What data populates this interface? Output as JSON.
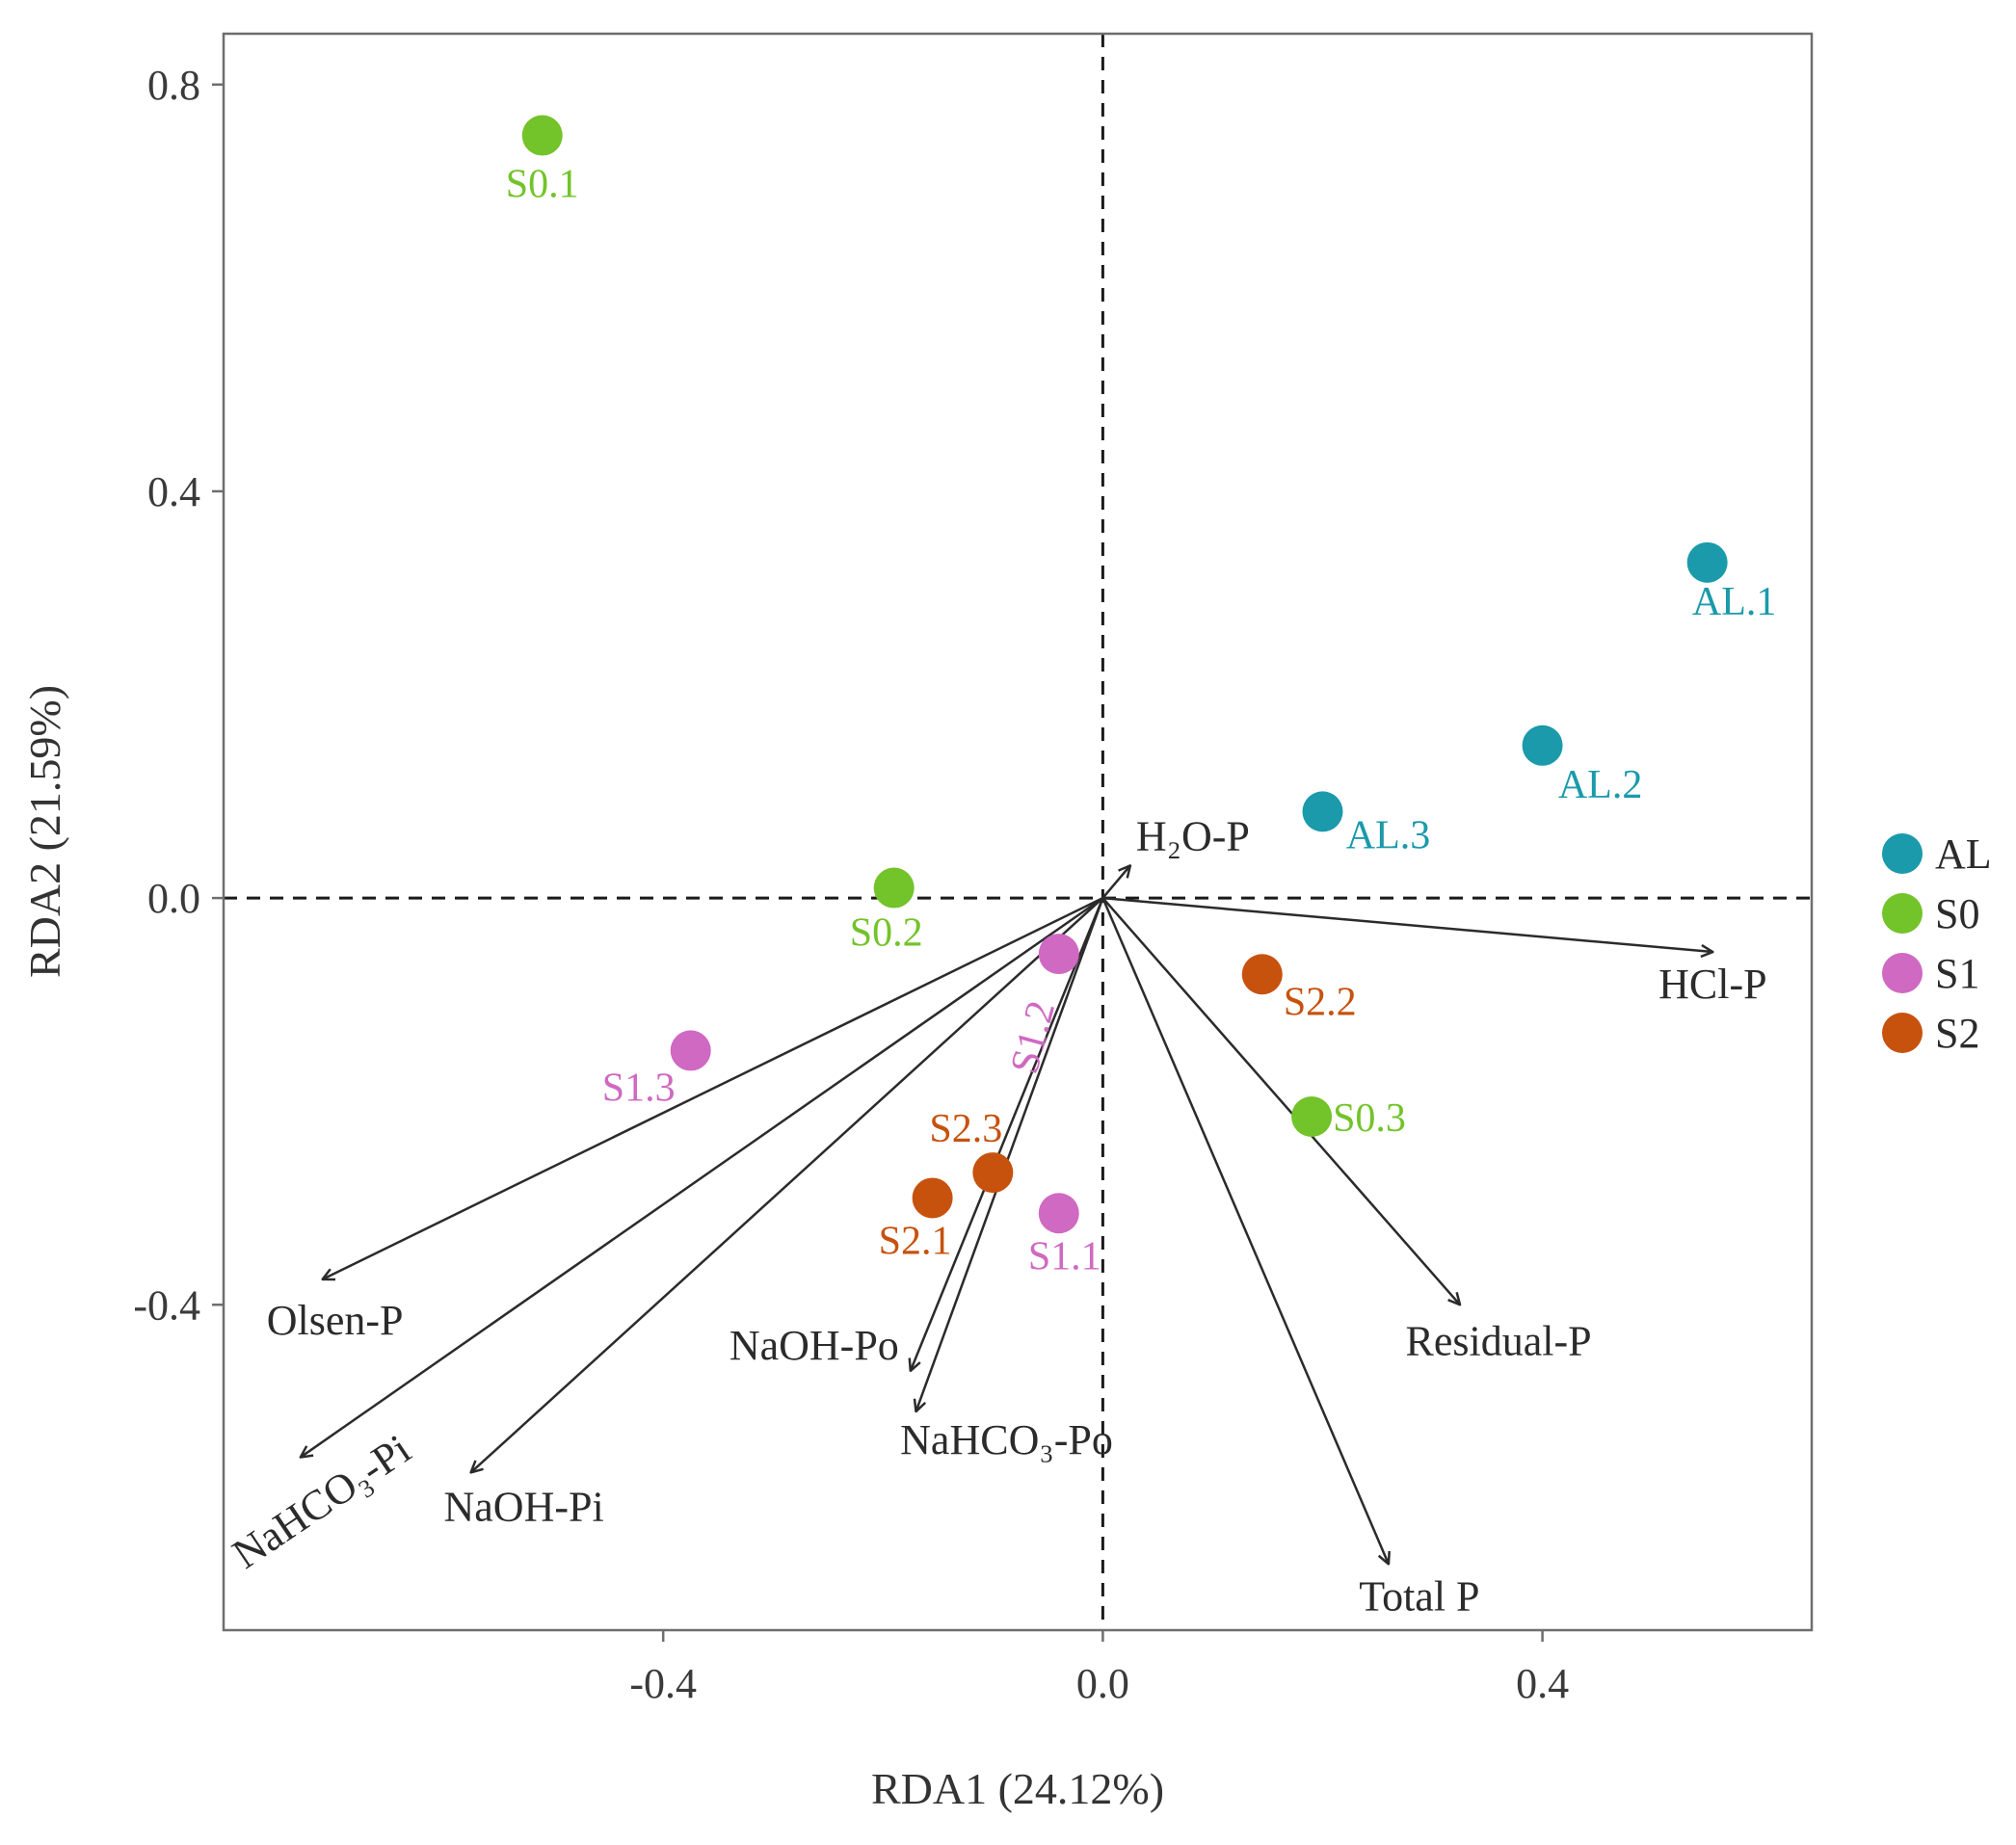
{
  "chart_data": {
    "type": "scatter",
    "subtype": "rda-biplot",
    "xlabel": "RDA1 (24.12%)",
    "ylabel": "RDA2 (21.59%)",
    "xlim": [
      -0.8,
      0.645
    ],
    "ylim": [
      -0.72,
      0.85
    ],
    "x_ticks": [
      {
        "value": -0.4,
        "label": "-0.4"
      },
      {
        "value": 0.0,
        "label": "0.0"
      },
      {
        "value": 0.4,
        "label": "0.4"
      }
    ],
    "y_ticks": [
      {
        "value": 0.8,
        "label": "0.8"
      },
      {
        "value": 0.4,
        "label": "0.4"
      },
      {
        "value": 0.0,
        "label": "0.0"
      },
      {
        "value": -0.4,
        "label": "-0.4"
      }
    ],
    "reference_lines": {
      "x": 0,
      "y": 0,
      "style": "dashed"
    },
    "legend": {
      "position": "right",
      "entries": [
        {
          "name": "AL",
          "color": "#1a9aaa"
        },
        {
          "name": "S0",
          "color": "#73c32a"
        },
        {
          "name": "S1",
          "color": "#cf69c2"
        },
        {
          "name": "S2",
          "color": "#c7520e"
        }
      ]
    },
    "samples": [
      {
        "label": "S0.1",
        "group": "S0",
        "x": -0.51,
        "y": 0.75
      },
      {
        "label": "S0.2",
        "group": "S0",
        "x": -0.19,
        "y": 0.01
      },
      {
        "label": "S0.3",
        "group": "S0",
        "x": 0.19,
        "y": -0.215
      },
      {
        "label": "AL.1",
        "group": "AL",
        "x": 0.55,
        "y": 0.33
      },
      {
        "label": "AL.2",
        "group": "AL",
        "x": 0.4,
        "y": 0.15
      },
      {
        "label": "AL.3",
        "group": "AL",
        "x": 0.2,
        "y": 0.085
      },
      {
        "label": "S1.1",
        "group": "S1",
        "x": -0.04,
        "y": -0.31
      },
      {
        "label": "S1.2",
        "group": "S1",
        "x": -0.04,
        "y": -0.055
      },
      {
        "label": "S1.3",
        "group": "S1",
        "x": -0.375,
        "y": -0.15
      },
      {
        "label": "S2.1",
        "group": "S2",
        "x": -0.155,
        "y": -0.295
      },
      {
        "label": "S2.2",
        "group": "S2",
        "x": 0.145,
        "y": -0.075
      },
      {
        "label": "S2.3",
        "group": "S2",
        "x": -0.1,
        "y": -0.27
      }
    ],
    "vectors": [
      {
        "label": "H₂O-P",
        "x": 0.025,
        "y": 0.032
      },
      {
        "label": "HCl-P",
        "x": 0.555,
        "y": -0.053
      },
      {
        "label": "Residual-P",
        "x": 0.325,
        "y": -0.4
      },
      {
        "label": "Total P",
        "x": 0.26,
        "y": -0.655
      },
      {
        "label": "NaOH-Po",
        "x": -0.175,
        "y": -0.465
      },
      {
        "label": "NaHCO₃-Po",
        "x": -0.17,
        "y": -0.505
      },
      {
        "label": "NaOH-Pi",
        "x": -0.575,
        "y": -0.565
      },
      {
        "label": "NaHCO₃-Pi",
        "x": -0.73,
        "y": -0.55
      },
      {
        "label": "Olsen-P",
        "x": -0.71,
        "y": -0.375
      }
    ]
  }
}
